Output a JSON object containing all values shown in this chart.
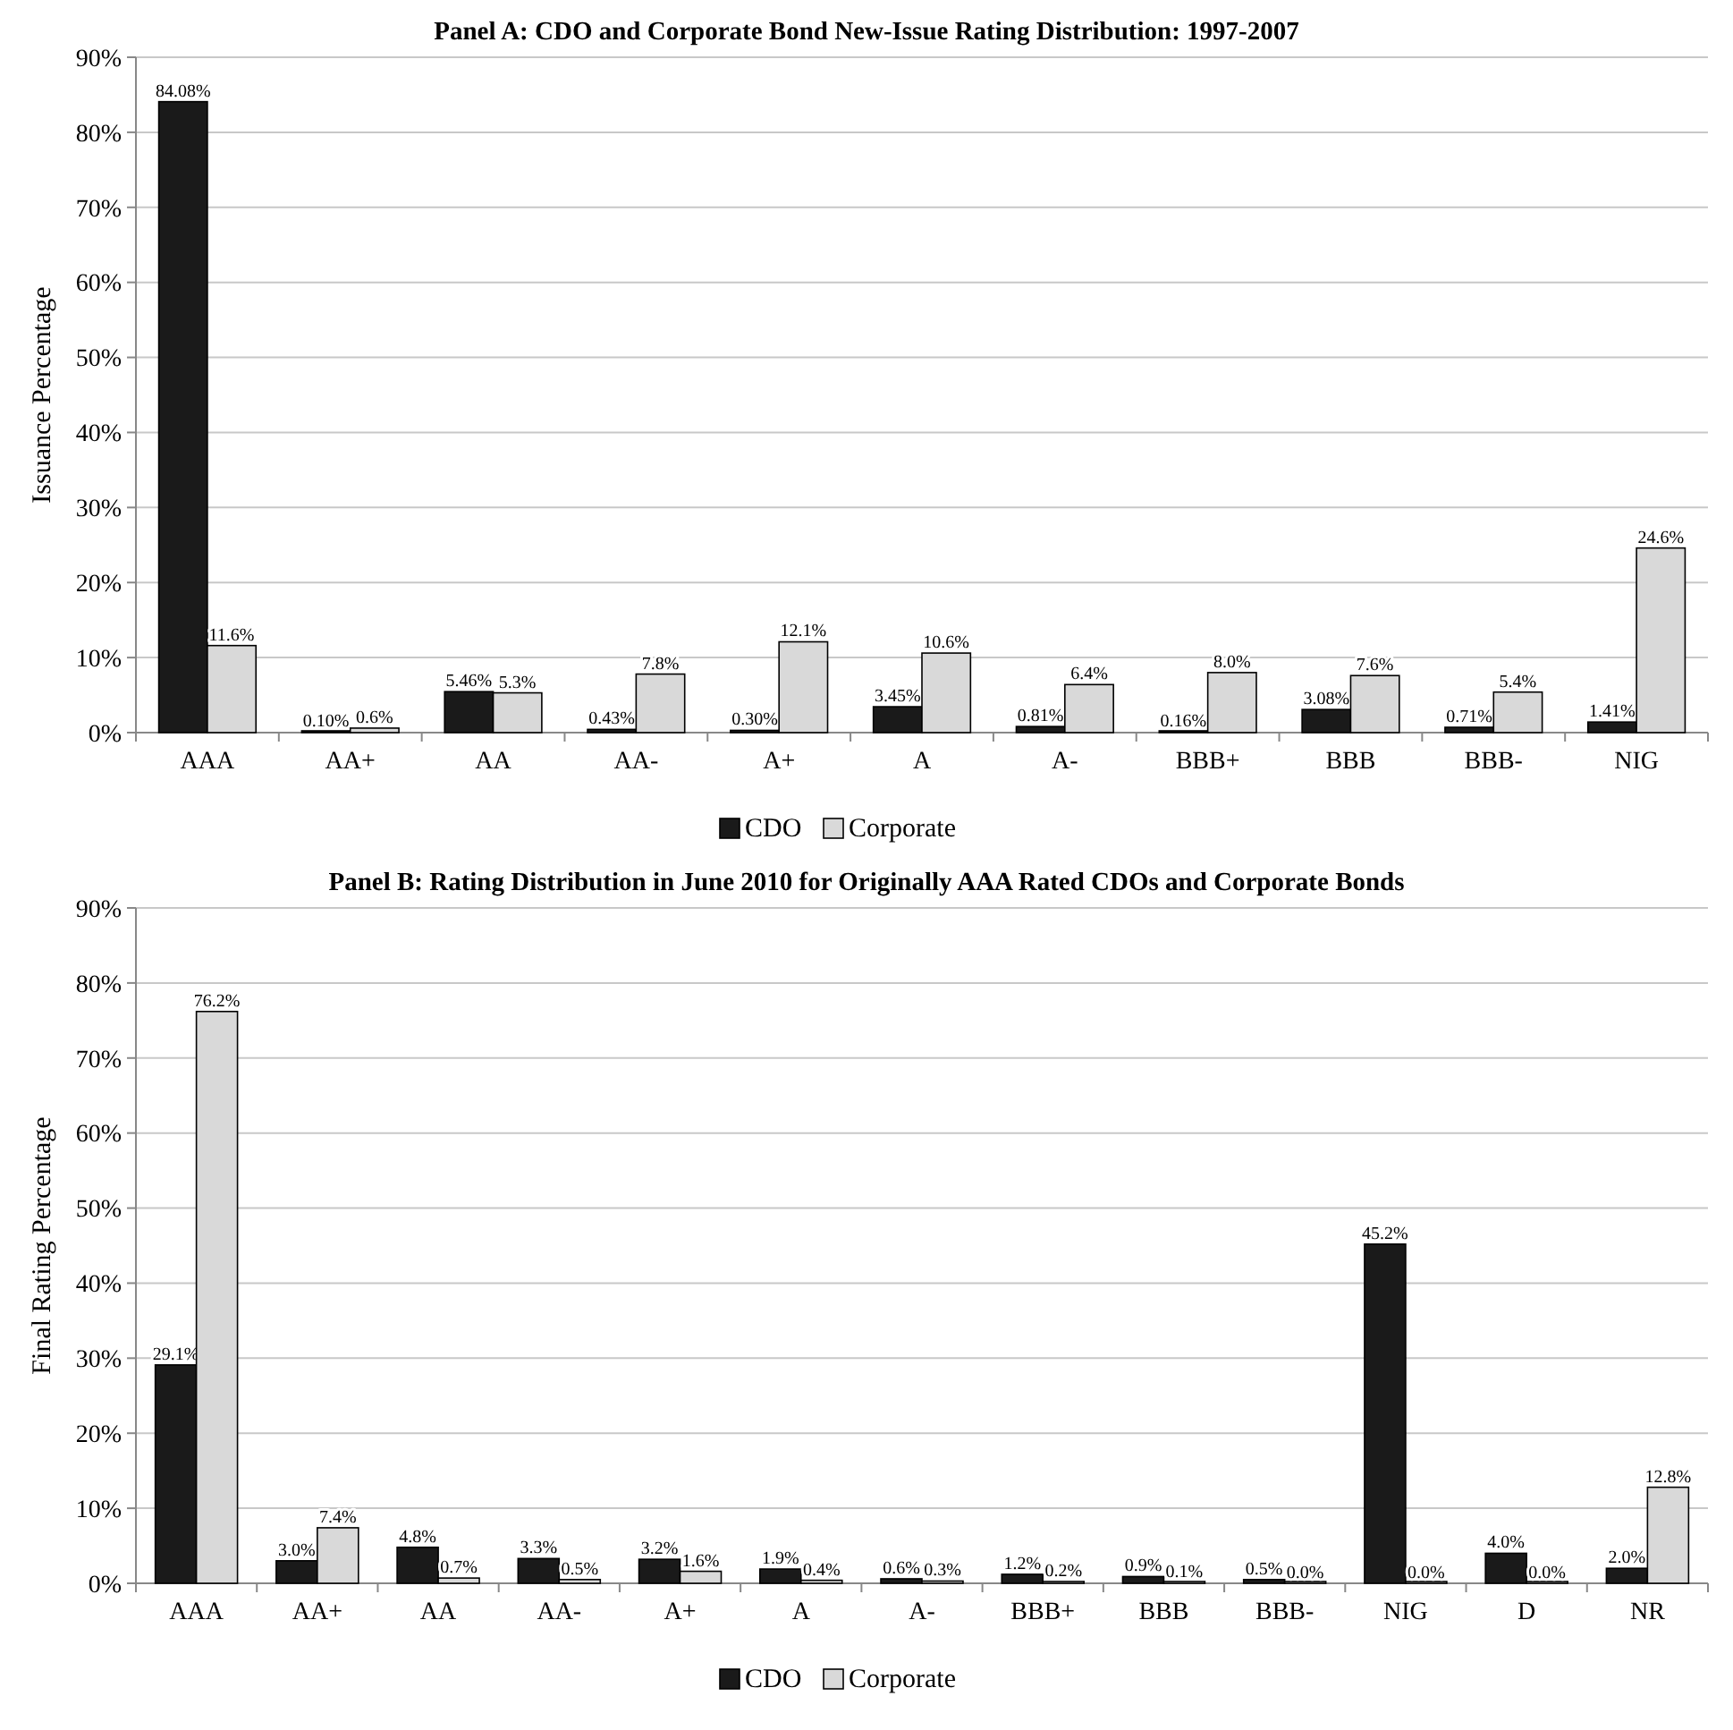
{
  "chart_data": [
    {
      "type": "bar",
      "title": "Panel A: CDO and Corporate Bond New-Issue Rating Distribution: 1997-2007",
      "ylabel": "Issuance Percentage",
      "categories": [
        "AAA",
        "AA+",
        "AA",
        "AA-",
        "A+",
        "A",
        "A-",
        "BBB+",
        "BBB",
        "BBB-",
        "NIG"
      ],
      "series": [
        {
          "name": "CDO",
          "color": "#1a1a1a",
          "values": [
            84.08,
            0.1,
            5.46,
            0.43,
            0.3,
            3.45,
            0.81,
            0.16,
            3.08,
            0.71,
            1.41
          ],
          "value_labels": [
            "84.08%",
            "0.10%",
            "5.46%",
            "0.43%",
            "0.30%",
            "3.45%",
            "0.81%",
            "0.16%",
            "3.08%",
            "0.71%",
            "1.41%"
          ]
        },
        {
          "name": "Corporate",
          "color": "#d9d9d9",
          "values": [
            11.6,
            0.6,
            5.3,
            7.8,
            12.1,
            10.6,
            6.4,
            8.0,
            7.6,
            5.4,
            24.6
          ],
          "value_labels": [
            "11.6%",
            "0.6%",
            "5.3%",
            "7.8%",
            "12.1%",
            "10.6%",
            "6.4%",
            "8.0%",
            "7.6%",
            "5.4%",
            "24.6%"
          ]
        }
      ],
      "ylim": [
        0,
        90
      ],
      "yticks": [
        {
          "value": 0,
          "label": "0%"
        },
        {
          "value": 10,
          "label": "10%"
        },
        {
          "value": 20,
          "label": "20%"
        },
        {
          "value": 30,
          "label": "30%"
        },
        {
          "value": 40,
          "label": "40%"
        },
        {
          "value": 50,
          "label": "50%"
        },
        {
          "value": 60,
          "label": "60%"
        },
        {
          "value": 70,
          "label": "70%"
        },
        {
          "value": 80,
          "label": "80%"
        },
        {
          "value": 90,
          "label": "90%"
        }
      ],
      "grid": "y",
      "legend": "bottom"
    },
    {
      "type": "bar",
      "title": "Panel B: Rating Distribution in June 2010 for Originally AAA Rated CDOs and Corporate Bonds",
      "ylabel": "Final Rating Percentage",
      "categories": [
        "AAA",
        "AA+",
        "AA",
        "AA-",
        "A+",
        "A",
        "A-",
        "BBB+",
        "BBB",
        "BBB-",
        "NIG",
        "D",
        "NR"
      ],
      "series": [
        {
          "name": "CDO",
          "color": "#1a1a1a",
          "values": [
            29.1,
            3.0,
            4.8,
            3.3,
            3.2,
            1.9,
            0.6,
            1.2,
            0.9,
            0.5,
            45.2,
            4.0,
            2.0
          ],
          "value_labels": [
            "29.1%",
            "3.0%",
            "4.8%",
            "3.3%",
            "3.2%",
            "1.9%",
            "0.6%",
            "1.2%",
            "0.9%",
            "0.5%",
            "45.2%",
            "4.0%",
            "2.0%"
          ]
        },
        {
          "name": "Corporate",
          "color": "#d9d9d9",
          "values": [
            76.2,
            7.4,
            0.7,
            0.5,
            1.6,
            0.4,
            0.3,
            0.2,
            0.1,
            0.0,
            0.0,
            0.0,
            12.8
          ],
          "value_labels": [
            "76.2%",
            "7.4%",
            "0.7%",
            "0.5%",
            "1.6%",
            "0.4%",
            "0.3%",
            "0.2%",
            "0.1%",
            "0.0%",
            "0.0%",
            "0.0%",
            "12.8%"
          ]
        }
      ],
      "ylim": [
        0,
        90
      ],
      "yticks": [
        {
          "value": 0,
          "label": "0%"
        },
        {
          "value": 10,
          "label": "10%"
        },
        {
          "value": 20,
          "label": "20%"
        },
        {
          "value": 30,
          "label": "30%"
        },
        {
          "value": 40,
          "label": "40%"
        },
        {
          "value": 50,
          "label": "50%"
        },
        {
          "value": 60,
          "label": "60%"
        },
        {
          "value": 70,
          "label": "70%"
        },
        {
          "value": 80,
          "label": "80%"
        },
        {
          "value": 90,
          "label": "90%"
        }
      ],
      "grid": "y",
      "legend": "bottom"
    }
  ]
}
